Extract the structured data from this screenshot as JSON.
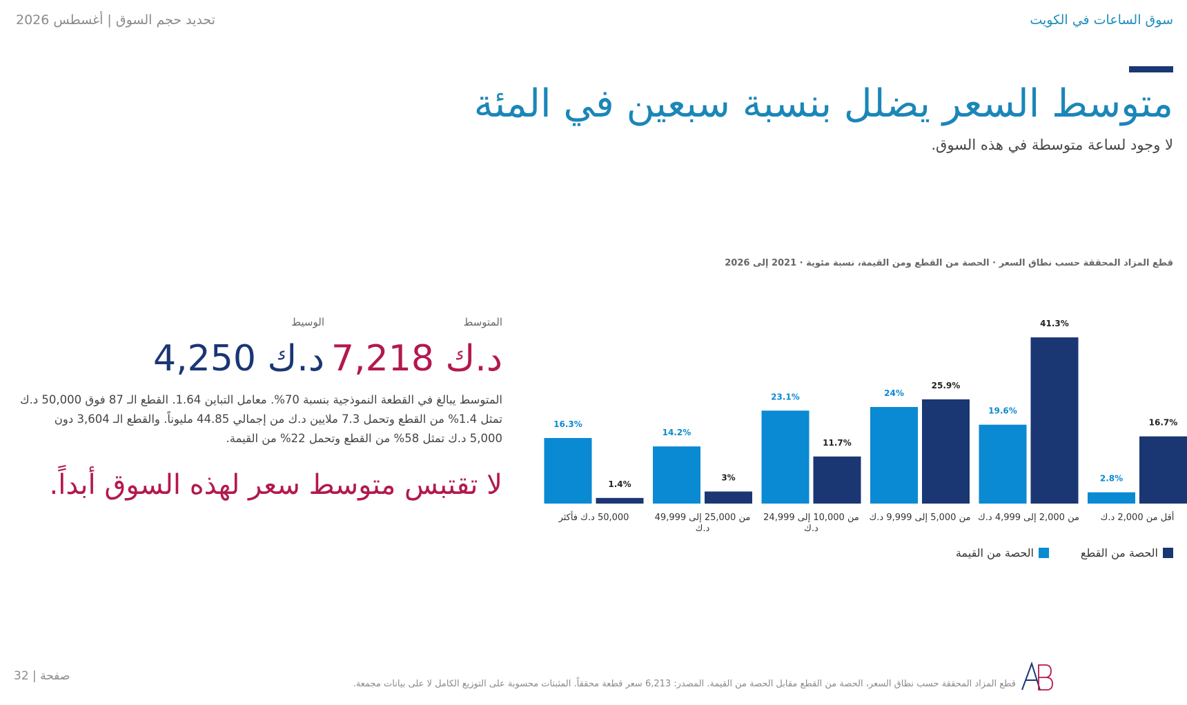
{
  "header": {
    "left": "تحديد حجم السوق | أغسطس 2026",
    "right": "سوق الساعات في الكويت"
  },
  "title": "متوسط السعر يضلل بنسبة سبعين في المئة",
  "subtitle": "لا وجود لساعة متوسطة في هذه السوق.",
  "stats": {
    "mean_label": "المتوسط",
    "mean_value": "د.ك 7,218",
    "median_label": "الوسيط",
    "median_value": "د.ك 4,250"
  },
  "body_text": "المتوسط يبالغ في القطعة النموذجية بنسبة 70%. معامل التباين 1.64. القطع الـ 87 فوق 50,000 د.ك تمثل 1.4% من القطع وتحمل 7.3 ملايين د.ك من إجمالي 44.85 مليوناً. والقطع الـ 3,604 دون 5,000 د.ك تمثل 58% من القطع وتحمل 22% من القيمة.",
  "callout": "لا تقتبس متوسط سعر لهذه السوق أبداً.",
  "colors": {
    "value_share": "#0a8ad2",
    "unit_share": "#1a3673",
    "title": "#1b86b8",
    "accent": "#b3184f"
  },
  "chart_data": {
    "type": "bar",
    "title": "قطع المزاد المحققة حسب نطاق السعر · الحصة من القطع ومن القيمة، نسبة مئوية · 2021 إلى 2026",
    "categories": [
      "أقل من 2,000 د.ك",
      "من 2,000 إلى 4,999 د.ك",
      "من 5,000 إلى 9,999 د.ك",
      "من 10,000 إلى 24,999 د.ك",
      "من 25,000 إلى 49,999 د.ك",
      "50,000 د.ك فأكثر"
    ],
    "series": [
      {
        "name": "الحصة من القطع",
        "values": [
          16.7,
          41.3,
          25.9,
          11.7,
          3.0,
          1.4
        ],
        "labels": [
          "16.7%",
          "41.3%",
          "25.9%",
          "11.7%",
          "3%",
          "1.4%"
        ]
      },
      {
        "name": "الحصة من القيمة",
        "values": [
          2.8,
          19.6,
          24.0,
          23.1,
          14.2,
          16.3
        ],
        "labels": [
          "2.8%",
          "19.6%",
          "24%",
          "23.1%",
          "14.2%",
          "16.3%"
        ]
      }
    ],
    "ylim": [
      0,
      42
    ],
    "grid": false,
    "legend_position": "bottom-right"
  },
  "footer": {
    "page": "صفحة | 32",
    "note": "قطع المزاد المحققة حسب نطاق السعر، الحصة من القطع مقابل الحصة من القيمة. المصدر: 6,213 سعر قطعة محققاً. المثبتات محسوبة على التوزيع الكامل لا على بيانات مجمعة.",
    "logo_text": "AB"
  }
}
